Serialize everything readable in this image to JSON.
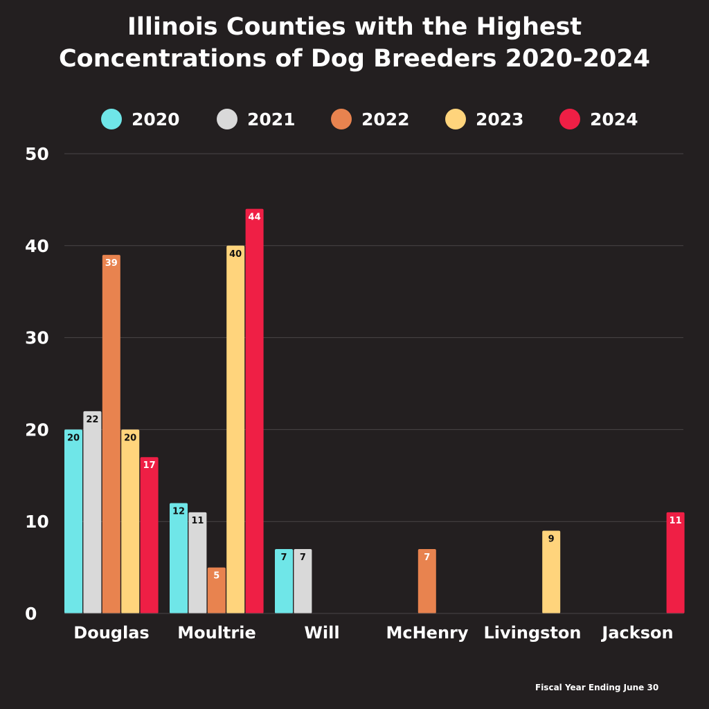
{
  "title": [
    "Illinois Counties with the Highest",
    "Concentrations of Dog Breeders 2020-2024"
  ],
  "footnote": "Fiscal Year Ending June 30",
  "chart_data": {
    "type": "bar",
    "title": "Illinois Counties with the Highest Concentrations of Dog Breeders 2020-2024",
    "xlabel": "",
    "ylabel": "",
    "ylim": [
      0,
      50
    ],
    "yticks": [
      0,
      10,
      20,
      30,
      40,
      50
    ],
    "grid": true,
    "legend": "top",
    "categories": [
      "Douglas",
      "Moultrie",
      "Will",
      "McHenry",
      "Livingston",
      "Jackson"
    ],
    "series": [
      {
        "name": "2020",
        "color": "#6fe6e8",
        "values": [
          20,
          12,
          7,
          null,
          null,
          null
        ]
      },
      {
        "name": "2021",
        "color": "#d9d9d9",
        "values": [
          22,
          11,
          7,
          null,
          null,
          null
        ]
      },
      {
        "name": "2022",
        "color": "#e8834f",
        "values": [
          39,
          5,
          null,
          7,
          null,
          null
        ]
      },
      {
        "name": "2023",
        "color": "#ffd47c",
        "values": [
          20,
          40,
          null,
          null,
          9,
          null
        ]
      },
      {
        "name": "2024",
        "color": "#ef1f45",
        "values": [
          17,
          44,
          null,
          null,
          null,
          11
        ]
      }
    ]
  }
}
